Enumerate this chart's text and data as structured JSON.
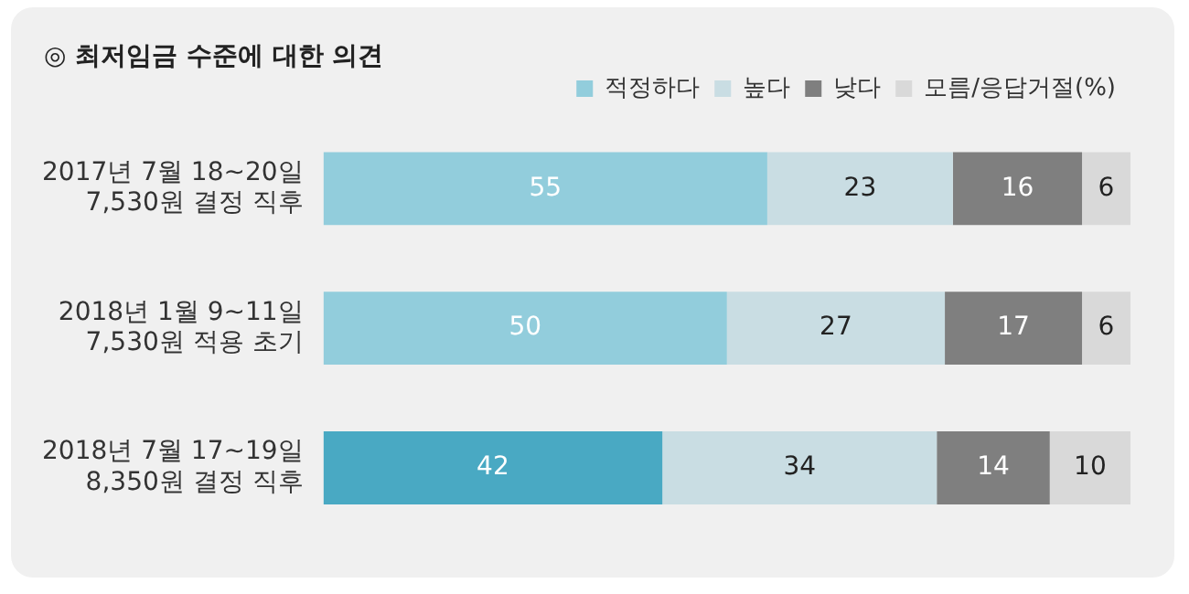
{
  "chart_data": {
    "type": "bar",
    "orientation": "horizontal",
    "stacked": true,
    "data_labels": true,
    "legend": "top right",
    "grid": false,
    "tick_labels": "y",
    "title": "◎ 최저임금 수준에 대한 의견",
    "categories": [
      "2017년 7월 18~20일\n7,530원 결정 직후",
      "2018년 1월 9~11일\n7,530원 적용 초기",
      "2018년 7월 17~19일\n8,350원 결정 직후"
    ],
    "series": [
      {
        "name": "적정하다",
        "color": "#92cddc",
        "colors": [
          "#92cddc",
          "#92cddc",
          "#49a9c3"
        ],
        "values": [
          55,
          50,
          42
        ]
      },
      {
        "name": "높다",
        "color": "#c9dde3",
        "values": [
          23,
          27,
          34
        ]
      },
      {
        "name": "낮다",
        "color": "#7f7f7f",
        "values": [
          16,
          17,
          14
        ]
      },
      {
        "name": "모름/응답거절(%)",
        "color": "#d9d9d9",
        "values": [
          6,
          6,
          10
        ]
      }
    ]
  }
}
